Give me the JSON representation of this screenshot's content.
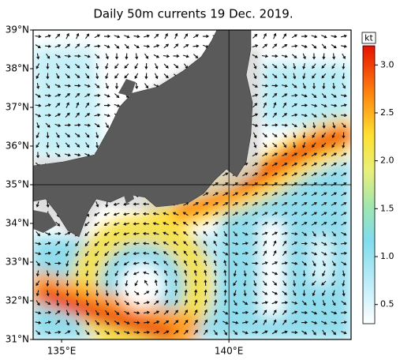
{
  "title": "Daily 50m currents 19 Dec. 2019.",
  "map": {
    "type": "map",
    "xlim": [
      134.15,
      143.65
    ],
    "ylim": [
      31,
      39
    ],
    "xticks": [
      {
        "value": 135,
        "label": "135°E"
      },
      {
        "value": 140,
        "label": "140°E"
      }
    ],
    "yticks": [
      {
        "value": 31,
        "label": "31°N"
      },
      {
        "value": 32,
        "label": "32°N"
      },
      {
        "value": 33,
        "label": "33°N"
      },
      {
        "value": 34,
        "label": "34°N"
      },
      {
        "value": 35,
        "label": "35°N"
      },
      {
        "value": 36,
        "label": "36°N"
      },
      {
        "value": 37,
        "label": "37°N"
      },
      {
        "value": 38,
        "label": "38°N"
      },
      {
        "value": 39,
        "label": "39°N"
      }
    ],
    "grid_lat": [
      35
    ],
    "grid_lon": [
      140
    ]
  },
  "colorbar": {
    "unit": "kt",
    "lim": [
      0.3,
      3.2
    ],
    "ticks": [
      0.5,
      {
        "value": 1,
        "label": "1.0"
      },
      1.5,
      {
        "value": 2,
        "label": "2.0"
      },
      2.5,
      {
        "value": 3,
        "label": "3.0"
      }
    ]
  }
}
